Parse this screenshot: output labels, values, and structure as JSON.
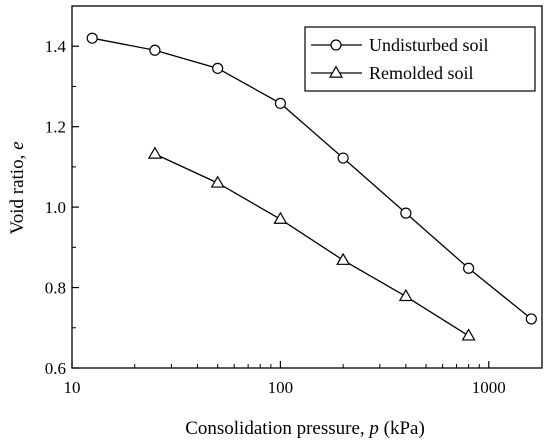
{
  "chart_data": {
    "type": "line",
    "x_scale": "log",
    "xlabel": {
      "text": "Consolidation pressure, ",
      "var": "p",
      "unit": " (kPa)"
    },
    "ylabel": {
      "text": "Void ratio, ",
      "var": "e"
    },
    "xlim": [
      10,
      1800
    ],
    "ylim": [
      0.6,
      1.5
    ],
    "xticks": [
      10,
      100,
      1000
    ],
    "xtick_labels": [
      "10",
      "100",
      "1000"
    ],
    "yticks": [
      0.6,
      0.8,
      1.0,
      1.2,
      1.4
    ],
    "ytick_labels": [
      "0.6",
      "0.8",
      "1.0",
      "1.2",
      "1.4"
    ],
    "grid": false,
    "legend_position": "top-right",
    "series": [
      {
        "name": "Undisturbed soil",
        "marker": "circle",
        "x": [
          12.5,
          25,
          50,
          100,
          200,
          400,
          800,
          1600
        ],
        "y": [
          1.42,
          1.39,
          1.345,
          1.258,
          1.122,
          0.985,
          0.848,
          0.722
        ]
      },
      {
        "name": "Remolded soil",
        "marker": "triangle",
        "x": [
          25,
          50,
          100,
          200,
          400,
          800
        ],
        "y": [
          1.132,
          1.06,
          0.97,
          0.868,
          0.778,
          0.68
        ]
      }
    ]
  }
}
